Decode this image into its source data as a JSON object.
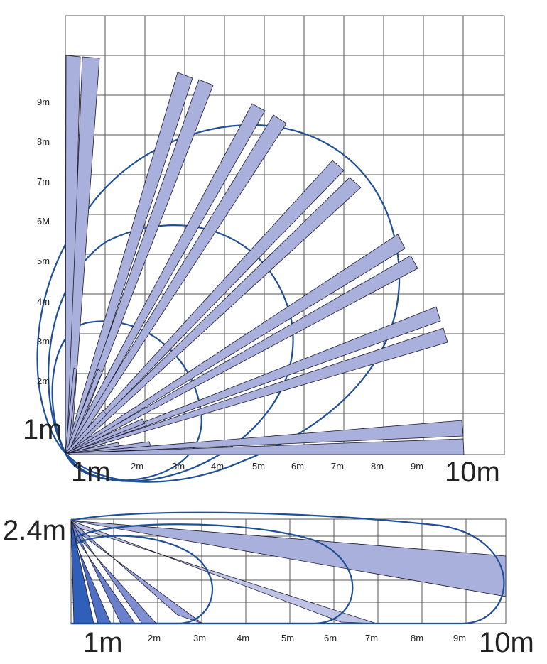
{
  "colors": {
    "beam_fill": "#aab0dc",
    "beam_fill_dark": "#7f8ed0",
    "beam_fill_deep": "#2f5fb8",
    "zone_stroke": "#1f4f96",
    "grid": "#555555"
  },
  "top_view": {
    "y_ticks": [
      "2m",
      "3m",
      "4m",
      "5m",
      "6M",
      "7m",
      "8m",
      "9m"
    ],
    "y_origin_label": "1m",
    "x_ticks": [
      "2m",
      "3m",
      "4m",
      "5m",
      "6m",
      "7m",
      "8m",
      "9m"
    ],
    "x_origin_label": "1m",
    "x_end_label": "10m",
    "beam_angles_deg": [
      88,
      85,
      68,
      66,
      58,
      55,
      48,
      45,
      37,
      33,
      28,
      24,
      4,
      2
    ],
    "beam_ranges_m": [
      10,
      10,
      9.6,
      9.6,
      8.8,
      8.8,
      7.8,
      7.8,
      7.0,
      7.0,
      6.0,
      6.0,
      10,
      10
    ],
    "zone_radii_m": [
      3.5,
      5.7,
      8.3
    ]
  },
  "side_view": {
    "height_label": "2.4m",
    "x_ticks": [
      "2m",
      "3m",
      "4m",
      "5m",
      "6m",
      "7m",
      "8m",
      "9m"
    ],
    "x_origin_label": "1m",
    "x_end_label": "10m"
  }
}
